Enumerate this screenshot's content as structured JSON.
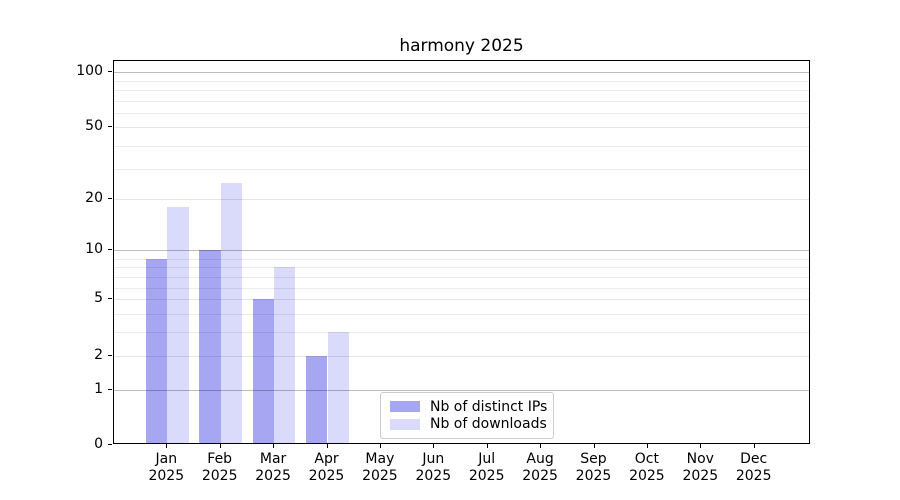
{
  "chart_data": {
    "type": "bar",
    "title": "harmony 2025",
    "categories": [
      "Jan 2025",
      "Feb 2025",
      "Mar 2025",
      "Apr 2025",
      "May 2025",
      "Jun 2025",
      "Jul 2025",
      "Aug 2025",
      "Sep 2025",
      "Oct 2025",
      "Nov 2025",
      "Dec 2025"
    ],
    "series": [
      {
        "name": "Nb of distinct IPs",
        "color": "#a6a6f2",
        "values": [
          9,
          10,
          5,
          2,
          0,
          0,
          0,
          0,
          0,
          0,
          0,
          0
        ]
      },
      {
        "name": "Nb of downloads",
        "color": "#dadafa",
        "values": [
          18,
          25,
          8,
          3,
          0,
          0,
          0,
          0,
          0,
          0,
          0,
          0
        ]
      }
    ],
    "xlabel": "",
    "ylabel": "",
    "ylim": [
      0,
      100
    ],
    "yscale": "log-like with 0 baseline",
    "ytick_values": [
      0,
      1,
      2,
      5,
      10,
      20,
      50,
      100
    ],
    "minor_grid_values": [
      3,
      4,
      6,
      7,
      8,
      9,
      30,
      40,
      60,
      70,
      80,
      90
    ],
    "decade_grid_values": [
      1,
      10,
      100
    ],
    "grid": "horizontal",
    "legend_position": "inside lower-center"
  }
}
